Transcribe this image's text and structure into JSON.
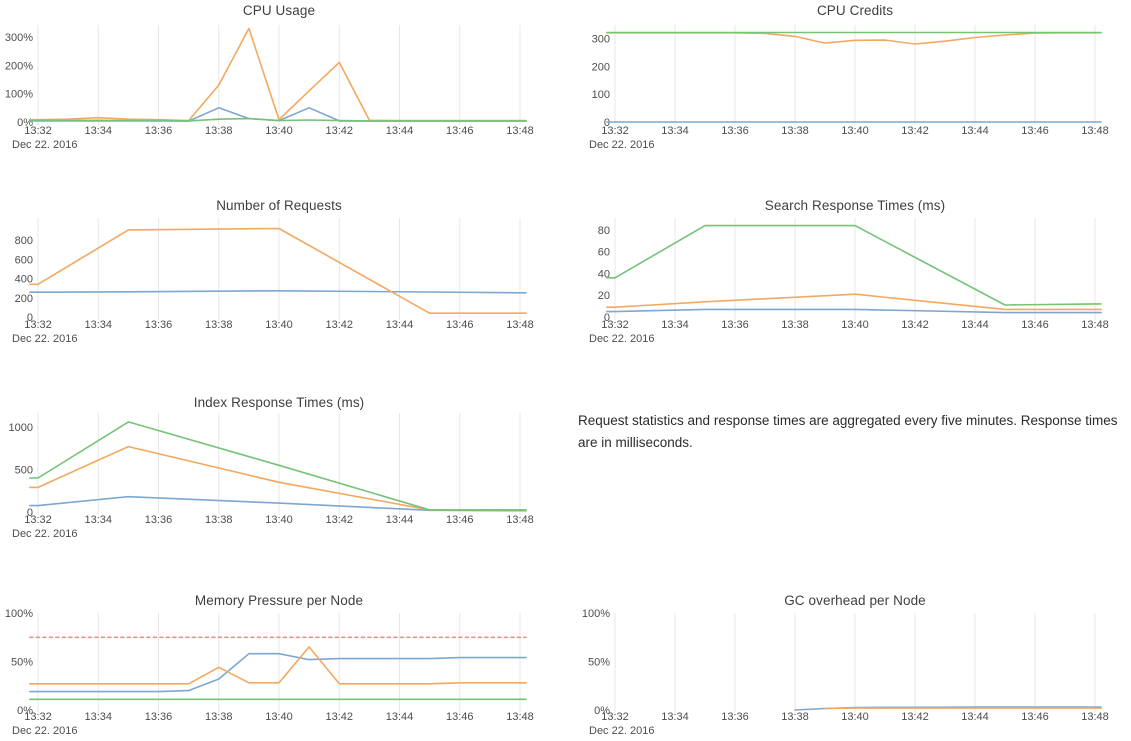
{
  "palette": {
    "blue": "#7da7d0",
    "orange": "#f3a85f",
    "green": "#74c377",
    "red": "#ef8c8c",
    "grid": "#e7e7e7",
    "tick_text": "#4d4d4d",
    "title_text": "#3f3f3f"
  },
  "note": {
    "text": "Request statistics and response times are aggregated every five minutes. Response times are in milliseconds."
  },
  "chart_data": [
    {
      "id": "cpu-usage",
      "type": "line",
      "title": "CPU Usage",
      "date_label": "Dec 22. 2016",
      "x_ticks": [
        "13:32",
        "13:34",
        "13:36",
        "13:38",
        "13:40",
        "13:42",
        "13:44",
        "13:46",
        "13:48"
      ],
      "y_ticks": [
        {
          "value": 0,
          "label": "0%"
        },
        {
          "value": 100,
          "label": "100%"
        },
        {
          "value": 200,
          "label": "200%"
        },
        {
          "value": 300,
          "label": "300%"
        }
      ],
      "ylim": [
        0,
        342
      ],
      "grid": "vertical",
      "legend": "none",
      "series": [
        {
          "color": "blue",
          "x": [
            0,
            1,
            2,
            3,
            4,
            5,
            6,
            7,
            8,
            9,
            10,
            11,
            12,
            13,
            14,
            15,
            16
          ],
          "values": [
            4,
            4,
            4,
            4,
            4,
            3,
            50,
            12,
            5,
            50,
            4,
            3,
            3,
            3,
            3,
            3,
            3
          ]
        },
        {
          "color": "orange",
          "x": [
            0,
            1,
            2,
            3,
            4,
            5,
            6,
            7,
            8,
            9,
            10,
            11,
            12,
            13,
            14,
            15,
            16
          ],
          "values": [
            8,
            10,
            15,
            10,
            8,
            5,
            130,
            330,
            8,
            110,
            210,
            6,
            5,
            5,
            5,
            5,
            5
          ]
        },
        {
          "color": "green",
          "x": [
            0,
            1,
            2,
            3,
            4,
            5,
            6,
            7,
            8,
            9,
            10,
            11,
            12,
            13,
            14,
            15,
            16
          ],
          "values": [
            5,
            5,
            6,
            5,
            5,
            4,
            10,
            12,
            5,
            7,
            5,
            4,
            4,
            4,
            4,
            4,
            4
          ]
        }
      ]
    },
    {
      "id": "cpu-credits",
      "type": "line",
      "title": "CPU Credits",
      "date_label": "Dec 22. 2016",
      "x_ticks": [
        "13:32",
        "13:34",
        "13:36",
        "13:38",
        "13:40",
        "13:42",
        "13:44",
        "13:46",
        "13:48"
      ],
      "y_ticks": [
        {
          "value": 0,
          "label": "0"
        },
        {
          "value": 100,
          "label": "100"
        },
        {
          "value": 200,
          "label": "200"
        },
        {
          "value": 300,
          "label": "300"
        }
      ],
      "ylim": [
        0,
        348
      ],
      "grid": "vertical",
      "legend": "none",
      "series": [
        {
          "color": "blue",
          "x": [
            0,
            1,
            2,
            3,
            4,
            5,
            6,
            7,
            8,
            9,
            10,
            11,
            12,
            13,
            14,
            15,
            16
          ],
          "values": [
            0,
            0,
            0,
            0,
            0,
            0,
            0,
            0,
            0,
            0,
            0,
            0,
            0,
            0,
            0,
            0,
            0
          ]
        },
        {
          "color": "orange",
          "x": [
            0,
            1,
            2,
            3,
            4,
            5,
            6,
            7,
            8,
            9,
            10,
            11,
            12,
            13,
            14,
            15,
            16
          ],
          "values": [
            320,
            320,
            320,
            320,
            320,
            318,
            307,
            283,
            293,
            294,
            280,
            290,
            303,
            312,
            319,
            320,
            320
          ]
        },
        {
          "color": "green",
          "x": [
            0,
            1,
            2,
            3,
            4,
            5,
            6,
            7,
            8,
            9,
            10,
            11,
            12,
            13,
            14,
            15,
            16
          ],
          "values": [
            321,
            321,
            321,
            321,
            321,
            321,
            321,
            321,
            321,
            321,
            321,
            321,
            321,
            321,
            321,
            321,
            321
          ]
        }
      ]
    },
    {
      "id": "number-of-requests",
      "type": "line",
      "title": "Number of Requests",
      "date_label": "Dec 22. 2016",
      "x_ticks": [
        "13:32",
        "13:34",
        "13:36",
        "13:38",
        "13:40",
        "13:42",
        "13:44",
        "13:46",
        "13:48"
      ],
      "y_ticks": [
        {
          "value": 0,
          "label": "0"
        },
        {
          "value": 200,
          "label": "200"
        },
        {
          "value": 400,
          "label": "400"
        },
        {
          "value": 600,
          "label": "600"
        },
        {
          "value": 800,
          "label": "800"
        }
      ],
      "ylim": [
        0,
        1029
      ],
      "grid": "vertical",
      "legend": "none",
      "series": [
        {
          "color": "blue",
          "x": [
            0,
            3,
            8,
            13,
            16
          ],
          "values": [
            258,
            262,
            272,
            260,
            252
          ]
        },
        {
          "color": "orange",
          "x": [
            0,
            3,
            8,
            13,
            16
          ],
          "values": [
            340,
            905,
            920,
            40,
            40
          ]
        }
      ]
    },
    {
      "id": "search-response-times",
      "type": "line",
      "title": "Search Response Times (ms)",
      "date_label": "Dec 22. 2016",
      "x_ticks": [
        "13:32",
        "13:34",
        "13:36",
        "13:38",
        "13:40",
        "13:42",
        "13:44",
        "13:46",
        "13:48"
      ],
      "y_ticks": [
        {
          "value": 0,
          "label": "0"
        },
        {
          "value": 20,
          "label": "20"
        },
        {
          "value": 40,
          "label": "40"
        },
        {
          "value": 60,
          "label": "60"
        },
        {
          "value": 80,
          "label": "80"
        }
      ],
      "ylim": [
        0,
        91
      ],
      "grid": "vertical",
      "legend": "none",
      "series": [
        {
          "color": "blue",
          "x": [
            0,
            3,
            8,
            13,
            16
          ],
          "values": [
            5,
            7,
            7,
            4,
            4
          ]
        },
        {
          "color": "orange",
          "x": [
            0,
            3,
            8,
            13,
            16
          ],
          "values": [
            9,
            14,
            21,
            7,
            7
          ]
        },
        {
          "color": "green",
          "x": [
            0,
            3,
            8,
            13,
            16
          ],
          "values": [
            36,
            84,
            84,
            11,
            12
          ]
        }
      ]
    },
    {
      "id": "index-response-times",
      "type": "line",
      "title": "Index Response Times (ms)",
      "date_label": "Dec 22. 2016",
      "x_ticks": [
        "13:32",
        "13:34",
        "13:36",
        "13:38",
        "13:40",
        "13:42",
        "13:44",
        "13:46",
        "13:48"
      ],
      "y_ticks": [
        {
          "value": 0,
          "label": "0"
        },
        {
          "value": 500,
          "label": "500"
        },
        {
          "value": 1000,
          "label": "1000"
        }
      ],
      "ylim": [
        0,
        1165
      ],
      "grid": "vertical",
      "legend": "none",
      "series": [
        {
          "color": "blue",
          "x": [
            0,
            3,
            8,
            13,
            16
          ],
          "values": [
            75,
            180,
            105,
            20,
            15
          ]
        },
        {
          "color": "orange",
          "x": [
            0,
            3,
            8,
            13,
            16
          ],
          "values": [
            290,
            770,
            350,
            25,
            25
          ]
        },
        {
          "color": "green",
          "x": [
            0,
            3,
            8,
            13,
            16
          ],
          "values": [
            400,
            1060,
            550,
            25,
            25
          ]
        }
      ]
    },
    {
      "id": "memory-pressure-per-node",
      "type": "line",
      "title": "Memory Pressure per Node",
      "date_label": "Dec 22. 2016",
      "x_ticks": [
        "13:32",
        "13:34",
        "13:36",
        "13:38",
        "13:40",
        "13:42",
        "13:44",
        "13:46",
        "13:48"
      ],
      "y_ticks": [
        {
          "value": 0,
          "label": "0%"
        },
        {
          "value": 50,
          "label": "50%"
        },
        {
          "value": 100,
          "label": "100%"
        }
      ],
      "ylim": [
        0,
        100
      ],
      "grid": "vertical",
      "legend": "none",
      "series": [
        {
          "color": "blue",
          "x": [
            0,
            1,
            2,
            3,
            4,
            5,
            6,
            7,
            8,
            9,
            10,
            11,
            12,
            13,
            14,
            15,
            16
          ],
          "values": [
            19,
            19,
            19,
            19,
            19,
            20,
            32,
            58,
            58,
            52,
            53,
            53,
            53,
            53,
            54,
            54,
            54
          ]
        },
        {
          "color": "orange",
          "x": [
            0,
            1,
            2,
            3,
            4,
            5,
            6,
            7,
            8,
            9,
            10,
            11,
            12,
            13,
            14,
            15,
            16
          ],
          "values": [
            27,
            27,
            27,
            27,
            27,
            27,
            44,
            28,
            28,
            65,
            27,
            27,
            27,
            27,
            28,
            28,
            28
          ]
        },
        {
          "color": "green",
          "x": [
            0,
            16
          ],
          "values": [
            11,
            11
          ]
        },
        {
          "color": "red",
          "dash": true,
          "x": [
            0,
            16
          ],
          "values": [
            75,
            75
          ]
        }
      ]
    },
    {
      "id": "gc-overhead-per-node",
      "type": "line",
      "title": "GC overhead per Node",
      "date_label": "Dec 22. 2016",
      "x_ticks": [
        "13:32",
        "13:34",
        "13:36",
        "13:38",
        "13:40",
        "13:42",
        "13:44",
        "13:46",
        "13:48"
      ],
      "y_ticks": [
        {
          "value": 0,
          "label": "0%"
        },
        {
          "value": 50,
          "label": "50%"
        },
        {
          "value": 100,
          "label": "100%"
        }
      ],
      "ylim": [
        0,
        100
      ],
      "grid": "vertical",
      "legend": "none",
      "series": [
        {
          "color": "blue",
          "x": [
            6,
            7,
            8,
            9,
            10,
            11,
            12,
            13,
            14,
            15,
            16
          ],
          "values": [
            0,
            1.5,
            2.5,
            2.8,
            2.8,
            2.9,
            3,
            3,
            3,
            3,
            3
          ]
        },
        {
          "color": "orange",
          "x": [
            7,
            8,
            9,
            10,
            11,
            12,
            13,
            14,
            15,
            16
          ],
          "values": [
            1.5,
            2,
            2,
            2,
            2,
            2,
            2,
            2,
            2,
            2
          ]
        }
      ]
    }
  ]
}
